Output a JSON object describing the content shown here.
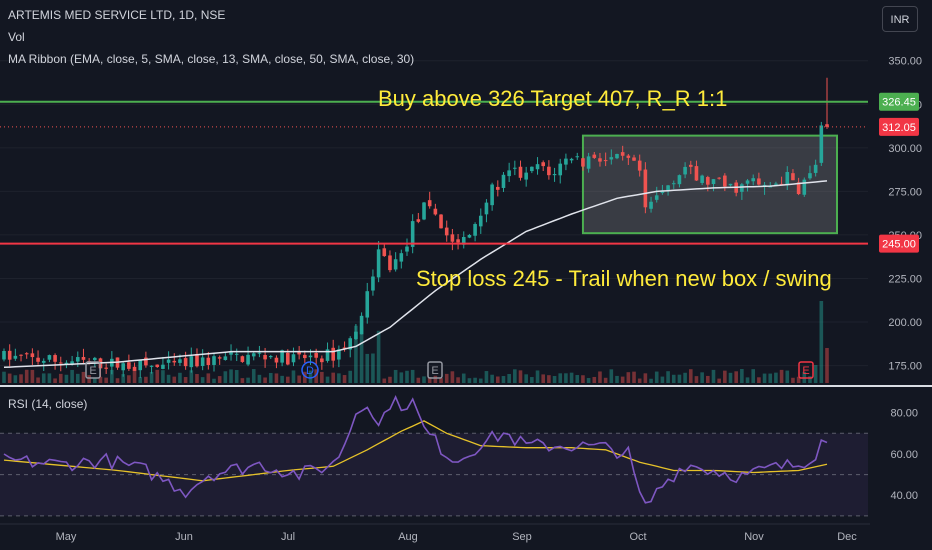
{
  "header": {
    "title": "ARTEMIS MED SERVICE LTD, 1D, NSE",
    "volume_label": "Vol",
    "ma_ribbon_label": "MA Ribbon (EMA, close, 5, SMA, close, 13, SMA, close, 50, SMA, close, 30)",
    "rsi_label": "RSI (14, close)",
    "currency": "INR"
  },
  "annotations": {
    "buy_text": "Buy above 326 Target 407, R_R 1:1",
    "stop_text": "Stop loss 245 - Trail when new box / swing"
  },
  "price_tags": {
    "resistance": "326.45",
    "last": "312.05",
    "support": "245.00"
  },
  "event_markers": [
    "E",
    "D",
    "E",
    "E"
  ],
  "colors": {
    "background": "#131722",
    "up": "#26a69a",
    "down": "#ef5350",
    "resistance_line": "#4caf50",
    "support_line": "#f23645",
    "annotation_text": "#ffeb3b",
    "ma_line": "#e0e3eb",
    "rsi_line": "#7e57c2",
    "rsi_ma": "#e6c229"
  },
  "chart_data": {
    "type": "candlestick",
    "price_axis": {
      "ticks": [
        "350.00",
        "325.00",
        "300.00",
        "275.00",
        "250.00",
        "225.00",
        "200.00",
        "175.00"
      ],
      "range": [
        165,
        355
      ]
    },
    "time_axis": {
      "ticks": [
        "May",
        "Jun",
        "Jul",
        "Aug",
        "Sep",
        "Oct",
        "Nov",
        "Dec"
      ]
    },
    "levels": {
      "resistance": 326.45,
      "last": 312.05,
      "support": 245.0
    },
    "consolidation_box": {
      "price_low": 251,
      "price_high": 307,
      "from": "Sep",
      "to": "Nov"
    },
    "price_waypoints": [
      [
        0,
        180
      ],
      [
        8,
        178
      ],
      [
        18,
        176
      ],
      [
        28,
        174
      ],
      [
        36,
        178
      ],
      [
        45,
        181
      ],
      [
        52,
        179
      ],
      [
        58,
        181
      ],
      [
        62,
        193
      ],
      [
        64,
        220
      ],
      [
        66,
        240
      ],
      [
        68,
        232
      ],
      [
        70,
        238
      ],
      [
        72,
        255
      ],
      [
        74,
        265
      ],
      [
        76,
        262
      ],
      [
        78,
        250
      ],
      [
        80,
        244
      ],
      [
        82,
        250
      ],
      [
        84,
        265
      ],
      [
        86,
        275
      ],
      [
        88,
        282
      ],
      [
        90,
        286
      ],
      [
        92,
        283
      ],
      [
        94,
        290
      ],
      [
        96,
        284
      ],
      [
        98,
        290
      ],
      [
        100,
        296
      ],
      [
        102,
        292
      ],
      [
        104,
        296
      ],
      [
        106,
        293
      ],
      [
        110,
        292
      ],
      [
        112,
        286
      ],
      [
        113,
        262
      ],
      [
        114,
        268
      ],
      [
        116,
        275
      ],
      [
        118,
        283
      ],
      [
        120,
        289
      ],
      [
        122,
        282
      ],
      [
        125,
        280
      ],
      [
        128,
        277
      ],
      [
        130,
        278
      ],
      [
        132,
        281
      ],
      [
        134,
        276
      ],
      [
        136,
        280
      ],
      [
        138,
        283
      ],
      [
        140,
        277
      ],
      [
        142,
        284
      ],
      [
        143,
        291
      ],
      [
        144,
        310
      ],
      [
        145,
        312
      ]
    ],
    "ma50_waypoints": [
      [
        0,
        174
      ],
      [
        20,
        177
      ],
      [
        40,
        183
      ],
      [
        58,
        183
      ],
      [
        62,
        186
      ],
      [
        68,
        197
      ],
      [
        76,
        218
      ],
      [
        84,
        236
      ],
      [
        92,
        252
      ],
      [
        100,
        262
      ],
      [
        108,
        271
      ],
      [
        115,
        275
      ],
      [
        125,
        277
      ],
      [
        135,
        278
      ],
      [
        145,
        281
      ]
    ],
    "rsi": {
      "axis_ticks": [
        "80.00",
        "60.00",
        "40.00"
      ],
      "range": [
        28,
        90
      ],
      "bands": [
        70,
        50,
        30
      ],
      "waypoints": [
        [
          0,
          57
        ],
        [
          10,
          55
        ],
        [
          18,
          57
        ],
        [
          25,
          52
        ],
        [
          32,
          42
        ],
        [
          36,
          50
        ],
        [
          45,
          55
        ],
        [
          52,
          50
        ],
        [
          58,
          55
        ],
        [
          60,
          65
        ],
        [
          62,
          80
        ],
        [
          64,
          86
        ],
        [
          66,
          73
        ],
        [
          68,
          85
        ],
        [
          70,
          84
        ],
        [
          72,
          85
        ],
        [
          74,
          72
        ],
        [
          78,
          60
        ],
        [
          80,
          57
        ],
        [
          84,
          65
        ],
        [
          88,
          70
        ],
        [
          92,
          64
        ],
        [
          100,
          64
        ],
        [
          106,
          63
        ],
        [
          110,
          60
        ],
        [
          112,
          40
        ],
        [
          113,
          34
        ],
        [
          116,
          45
        ],
        [
          120,
          55
        ],
        [
          125,
          52
        ],
        [
          130,
          49
        ],
        [
          135,
          53
        ],
        [
          140,
          55
        ],
        [
          143,
          60
        ],
        [
          144,
          70
        ],
        [
          145,
          65
        ]
      ],
      "ma_waypoints": [
        [
          0,
          57
        ],
        [
          20,
          52
        ],
        [
          35,
          47
        ],
        [
          50,
          52
        ],
        [
          58,
          54
        ],
        [
          64,
          62
        ],
        [
          70,
          71
        ],
        [
          74,
          76
        ],
        [
          78,
          70
        ],
        [
          84,
          64
        ],
        [
          92,
          63
        ],
        [
          100,
          63
        ],
        [
          106,
          62
        ],
        [
          112,
          56
        ],
        [
          118,
          52
        ],
        [
          125,
          52
        ],
        [
          132,
          51
        ],
        [
          140,
          52
        ],
        [
          145,
          55
        ]
      ]
    }
  }
}
